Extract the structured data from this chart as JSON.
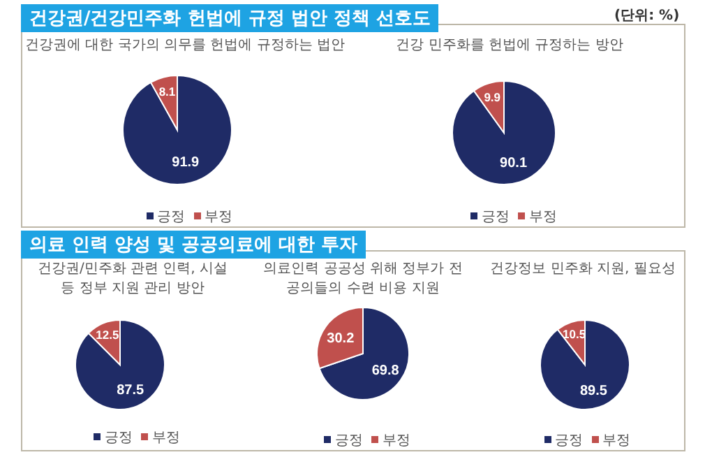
{
  "chart_data": [
    {
      "type": "pie",
      "title": "건강권에 대한 국가의 의무를 헌법에 규정하는 법안",
      "annotations": [
        "건강권/건강민주화 헌법에 규정 법안 정책 선호도",
        "(단위: %)"
      ],
      "categories": [
        "긍정",
        "부정"
      ],
      "values": [
        91.9,
        8.1
      ],
      "colors": [
        "#1f2b66",
        "#c0504d"
      ],
      "data_labels": true,
      "legend": "bottom"
    },
    {
      "type": "pie",
      "title": "건강 민주화를 헌법에 규정하는 방안",
      "categories": [
        "긍정",
        "부정"
      ],
      "values": [
        90.1,
        9.9
      ],
      "colors": [
        "#1f2b66",
        "#c0504d"
      ],
      "data_labels": true,
      "legend": "bottom"
    },
    {
      "type": "pie",
      "title": "건강권/민주화 관련 인력, 시설 등 정부 지원 관리 방안",
      "annotations": [
        "의료 인력 양성 및 공공의료에 대한 투자"
      ],
      "categories": [
        "긍정",
        "부정"
      ],
      "values": [
        87.5,
        12.5
      ],
      "colors": [
        "#1f2b66",
        "#c0504d"
      ],
      "data_labels": true,
      "legend": "bottom"
    },
    {
      "type": "pie",
      "title": "의료인력 공공성 위해 정부가 전공의들의 수련 비용 지원",
      "categories": [
        "긍정",
        "부정"
      ],
      "values": [
        69.8,
        30.2
      ],
      "colors": [
        "#1f2b66",
        "#c0504d"
      ],
      "data_labels": true,
      "legend": "bottom"
    },
    {
      "type": "pie",
      "title": "건강정보 민주화 지원, 필요성",
      "categories": [
        "긍정",
        "부정"
      ],
      "values": [
        89.5,
        10.5
      ],
      "colors": [
        "#1f2b66",
        "#c0504d"
      ],
      "data_labels": true,
      "legend": "bottom"
    }
  ]
}
